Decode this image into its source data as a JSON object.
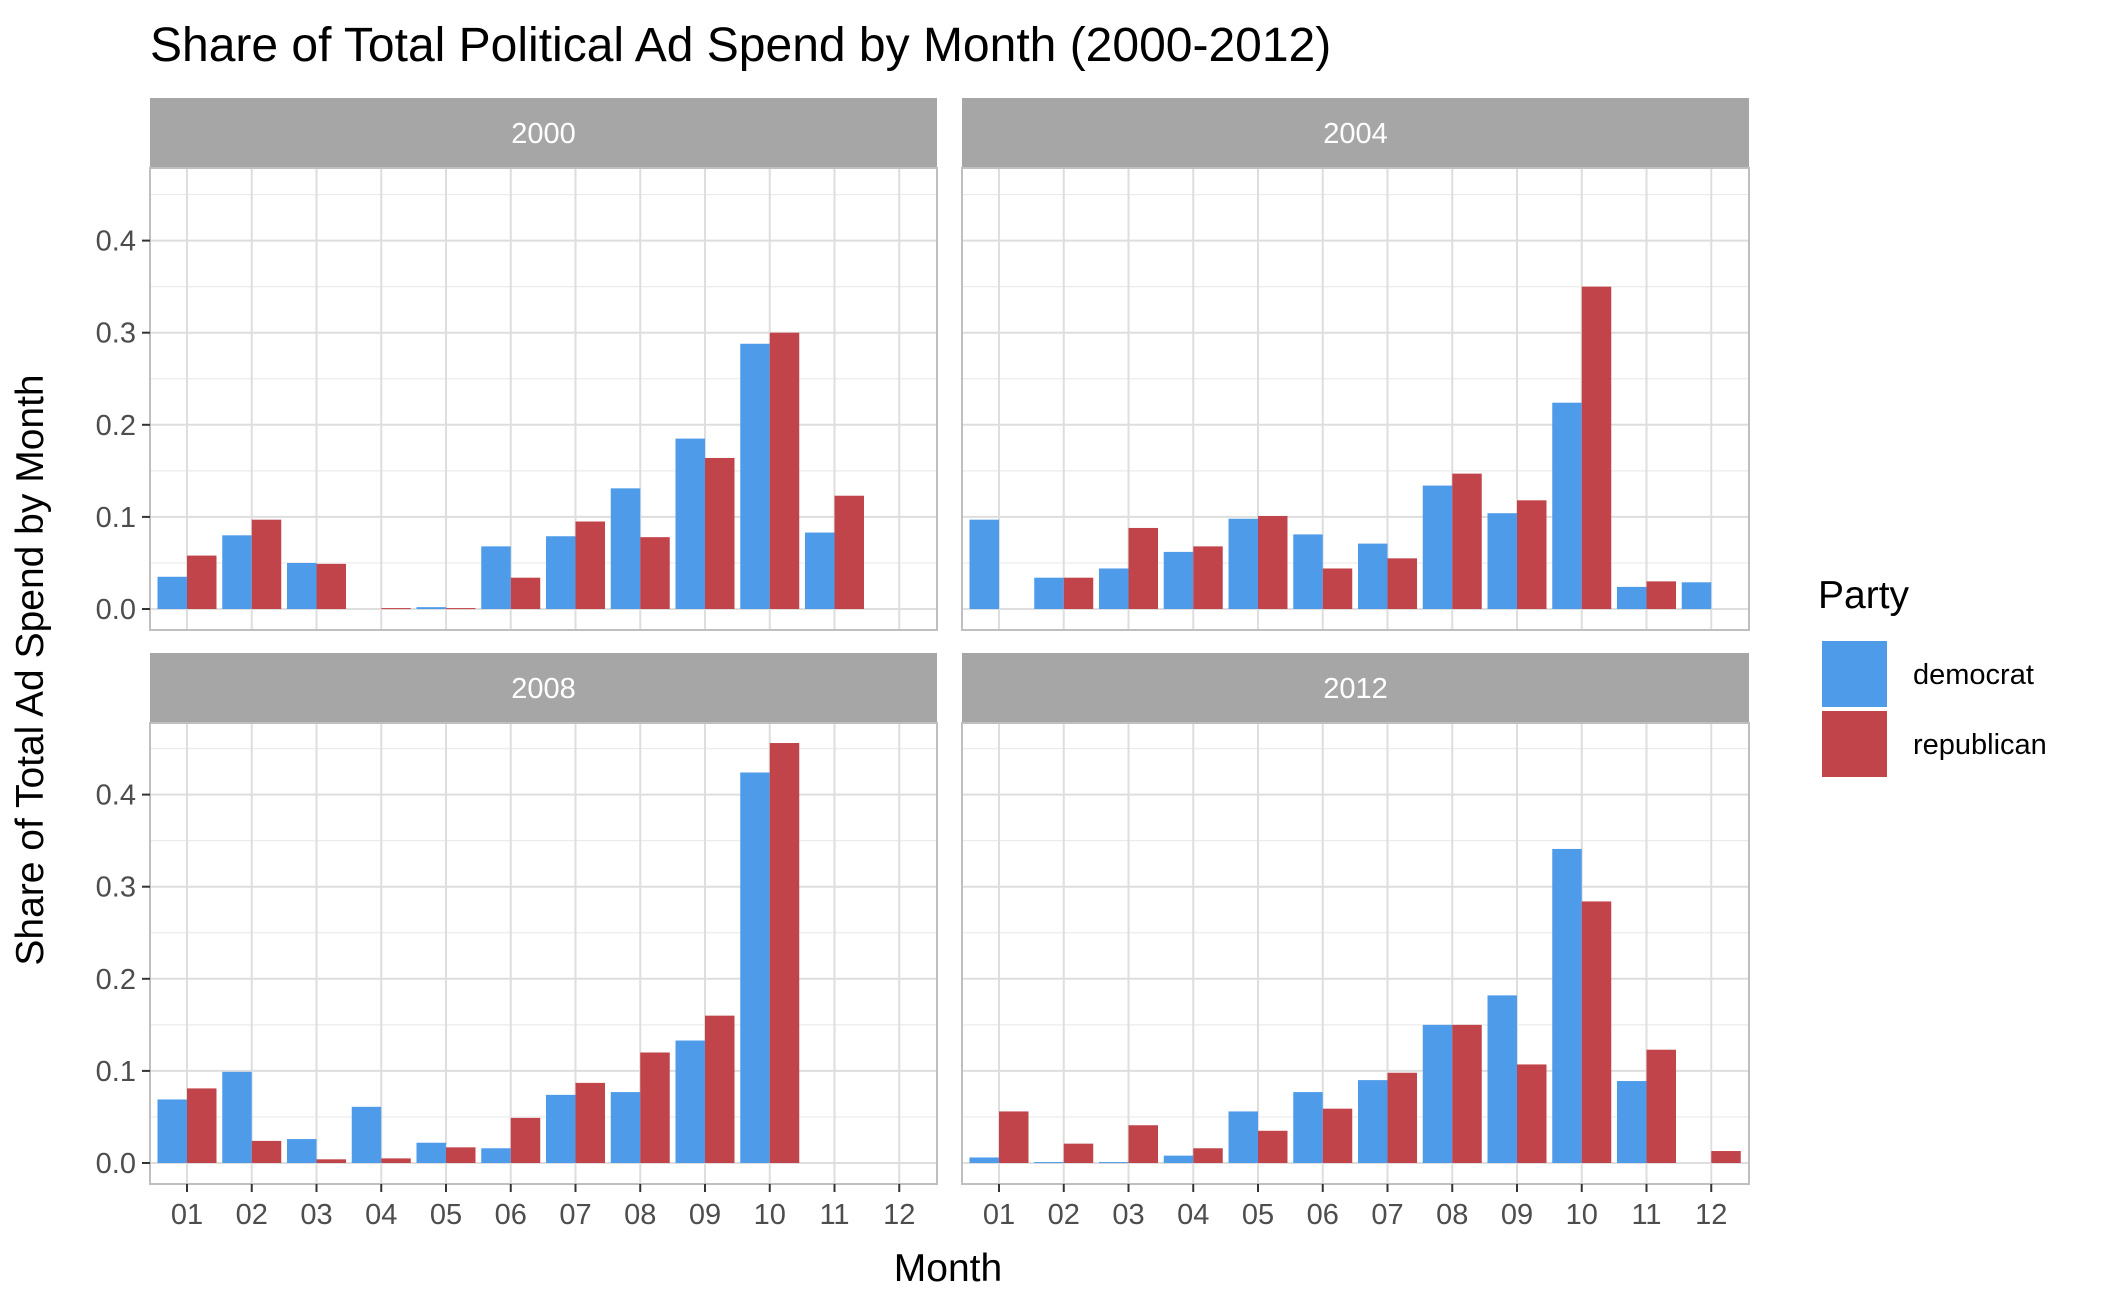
{
  "chart_data": {
    "type": "bar",
    "title": "Share of Total Political Ad Spend by Month (2000-2012)",
    "xlabel": "Month",
    "ylabel": "Share of Total Ad Spend by Month",
    "ylim": [
      0,
      0.48
    ],
    "y_ticks": [
      "0.0",
      "0.1",
      "0.2",
      "0.3",
      "0.4"
    ],
    "y_tick_values": [
      0,
      0.1,
      0.2,
      0.3,
      0.4
    ],
    "categories": [
      "01",
      "02",
      "03",
      "04",
      "05",
      "06",
      "07",
      "08",
      "09",
      "10",
      "11",
      "12"
    ],
    "legend": {
      "title": "Party",
      "position": "right"
    },
    "series_colors": {
      "democrat": "#4e9bea",
      "republican": "#c2444b"
    },
    "grid": true,
    "panels": [
      {
        "label": "2000",
        "series": [
          {
            "name": "democrat",
            "values": [
              0.035,
              0.08,
              0.05,
              0.0,
              0.002,
              0.068,
              0.079,
              0.131,
              0.185,
              0.288,
              0.083,
              0.0
            ]
          },
          {
            "name": "republican",
            "values": [
              0.058,
              0.097,
              0.049,
              0.001,
              0.001,
              0.034,
              0.095,
              0.078,
              0.164,
              0.3,
              0.123,
              0.0
            ]
          }
        ]
      },
      {
        "label": "2004",
        "series": [
          {
            "name": "democrat",
            "values": [
              0.097,
              0.034,
              0.044,
              0.062,
              0.098,
              0.081,
              0.071,
              0.134,
              0.104,
              0.224,
              0.024,
              0.029
            ]
          },
          {
            "name": "republican",
            "values": [
              0.0,
              0.034,
              0.088,
              0.068,
              0.101,
              0.044,
              0.055,
              0.147,
              0.118,
              0.35,
              0.03,
              0.0
            ]
          }
        ]
      },
      {
        "label": "2008",
        "series": [
          {
            "name": "democrat",
            "values": [
              0.069,
              0.099,
              0.026,
              0.061,
              0.022,
              0.016,
              0.074,
              0.077,
              0.133,
              0.424,
              0.0,
              0.0
            ]
          },
          {
            "name": "republican",
            "values": [
              0.081,
              0.024,
              0.004,
              0.005,
              0.017,
              0.049,
              0.087,
              0.12,
              0.16,
              0.456,
              0.0,
              0.0
            ]
          }
        ]
      },
      {
        "label": "2012",
        "series": [
          {
            "name": "democrat",
            "values": [
              0.006,
              0.001,
              0.001,
              0.008,
              0.056,
              0.077,
              0.09,
              0.15,
              0.182,
              0.341,
              0.089,
              0.0
            ]
          },
          {
            "name": "republican",
            "values": [
              0.056,
              0.021,
              0.041,
              0.016,
              0.035,
              0.059,
              0.098,
              0.15,
              0.107,
              0.284,
              0.123,
              0.013
            ]
          }
        ]
      }
    ]
  }
}
